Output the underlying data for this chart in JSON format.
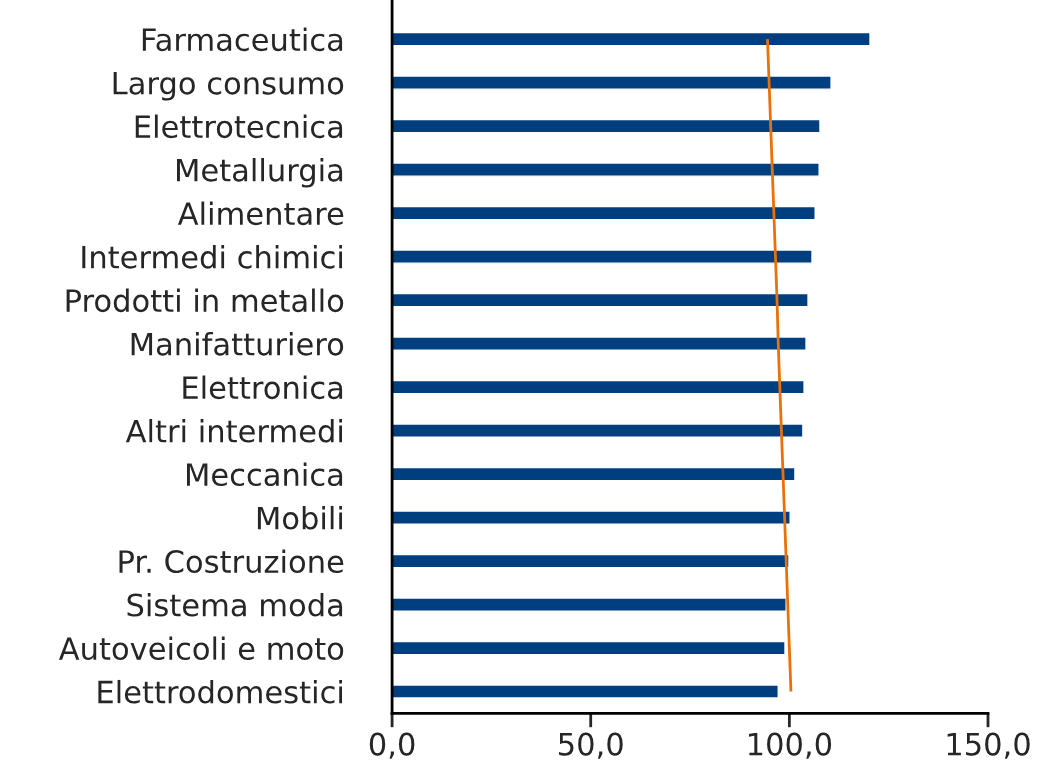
{
  "chart_data": {
    "type": "bar",
    "orientation": "horizontal",
    "categories": [
      "Farmaceutica",
      "Largo consumo",
      "Elettrotecnica",
      "Metallurgia",
      "Alimentare",
      "Intermedi chimici",
      "Prodotti in metallo",
      "Manifatturiero",
      "Elettronica",
      "Altri intermedi",
      "Meccanica",
      "Mobili",
      "Pr. Costruzione",
      "Sistema moda",
      "Autoveicoli e moto",
      "Elettrodomestici"
    ],
    "series": [
      {
        "color": "#003f7f",
        "values": [
          120.3,
          110.5,
          107.7,
          107.5,
          106.5,
          105.7,
          104.7,
          104.2,
          103.7,
          103.4,
          101.4,
          100.2,
          99.9,
          99.2,
          98.9,
          97.2
        ]
      },
      {
        "type": "line",
        "color": "#e8710a",
        "line_style": "solid",
        "values": [
          94.5,
          94.9,
          95.3,
          95.7,
          96.1,
          96.5,
          96.9,
          97.2,
          97.6,
          98.0,
          98.4,
          98.8,
          99.2,
          99.6,
          100.0,
          100.4
        ]
      }
    ],
    "xlim": [
      0,
      150
    ],
    "xticks": [
      {
        "value": 0,
        "label": "0,0"
      },
      {
        "value": 50,
        "label": "50,0"
      },
      {
        "value": 100,
        "label": "100,0"
      },
      {
        "value": 150,
        "label": "150,0"
      }
    ],
    "grid": false,
    "legend": false
  }
}
